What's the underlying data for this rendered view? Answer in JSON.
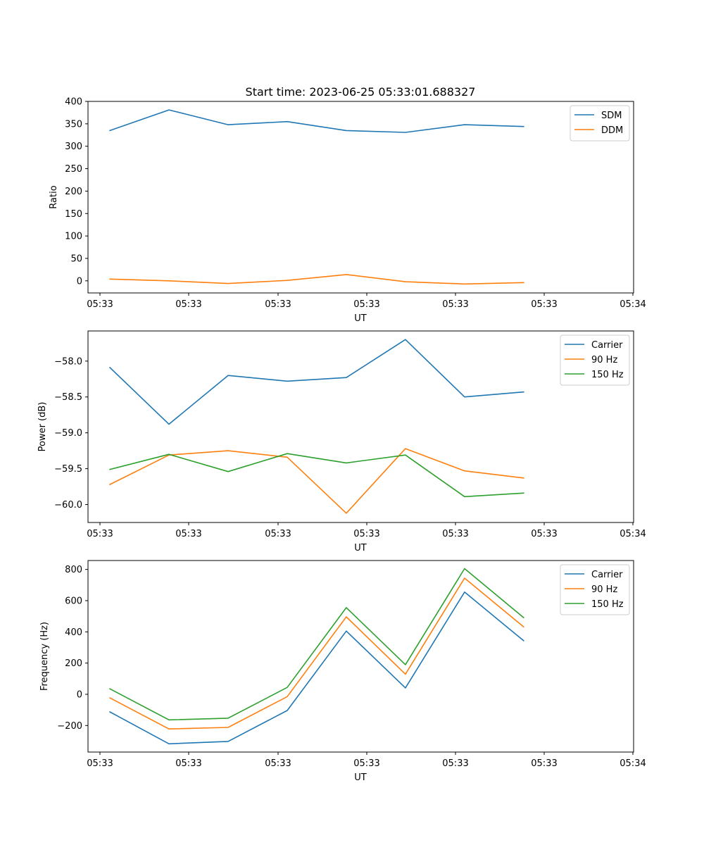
{
  "figure": {
    "title": "Start time: 2023-06-25 05:33:01.688327"
  },
  "chart_data": [
    {
      "type": "line",
      "title": "Start time: 2023-06-25 05:33:01.688327",
      "xlabel": "UT",
      "ylabel": "Ratio",
      "x_tick_labels": [
        "05:33",
        "05:33",
        "05:33",
        "05:33",
        "05:33",
        "05:33",
        "05:34"
      ],
      "y_ticks": [
        0,
        50,
        100,
        150,
        200,
        250,
        300,
        350,
        400
      ],
      "y_tick_labels": [
        "0",
        "50",
        "100",
        "150",
        "200",
        "250",
        "300",
        "350",
        "400"
      ],
      "ylim": [
        -27,
        400
      ],
      "xlim": [
        -0.37,
        8.86
      ],
      "x": [
        0,
        1,
        2,
        3,
        4,
        5,
        6,
        7
      ],
      "legend_position": "top-right",
      "series": [
        {
          "name": "SDM",
          "color": "#1f77b4",
          "values": [
            335,
            381,
            348,
            355,
            335,
            331,
            348,
            344
          ]
        },
        {
          "name": "DDM",
          "color": "#ff7f0e",
          "values": [
            4,
            0,
            -6,
            1,
            14,
            -2,
            -7,
            -4
          ]
        }
      ]
    },
    {
      "type": "line",
      "xlabel": "UT",
      "ylabel": "Power (dB)",
      "x_tick_labels": [
        "05:33",
        "05:33",
        "05:33",
        "05:33",
        "05:33",
        "05:33",
        "05:34"
      ],
      "y_ticks": [
        -60.0,
        -59.5,
        -59.0,
        -58.5,
        -58.0
      ],
      "y_tick_labels": [
        "−60.0",
        "−59.5",
        "−59.0",
        "−58.5",
        "−58.0"
      ],
      "ylim": [
        -60.25,
        -57.58
      ],
      "xlim": [
        -0.37,
        8.86
      ],
      "x": [
        0,
        1,
        2,
        3,
        4,
        5,
        6,
        7
      ],
      "legend_position": "top-right",
      "series": [
        {
          "name": "Carrier",
          "color": "#1f77b4",
          "values": [
            -58.09,
            -58.88,
            -58.2,
            -58.28,
            -58.23,
            -57.7,
            -58.5,
            -58.43
          ]
        },
        {
          "name": "90 Hz",
          "color": "#ff7f0e",
          "values": [
            -59.72,
            -59.31,
            -59.25,
            -59.34,
            -60.12,
            -59.22,
            -59.53,
            -59.63
          ]
        },
        {
          "name": "150 Hz",
          "color": "#2ca02c",
          "values": [
            -59.51,
            -59.3,
            -59.54,
            -59.29,
            -59.42,
            -59.31,
            -59.89,
            -59.84
          ]
        }
      ]
    },
    {
      "type": "line",
      "xlabel": "UT",
      "ylabel": "Frequency (Hz)",
      "x_tick_labels": [
        "05:33",
        "05:33",
        "05:33",
        "05:33",
        "05:33",
        "05:33",
        "05:34"
      ],
      "y_ticks": [
        -200,
        0,
        200,
        400,
        600,
        800
      ],
      "y_tick_labels": [
        "−200",
        "0",
        "200",
        "400",
        "600",
        "800"
      ],
      "ylim": [
        -370,
        857
      ],
      "xlim": [
        -0.37,
        8.86
      ],
      "x": [
        0,
        1,
        2,
        3,
        4,
        5,
        6,
        7
      ],
      "legend_position": "top-right",
      "series": [
        {
          "name": "Carrier",
          "color": "#1f77b4",
          "values": [
            -113,
            -317,
            -302,
            -104,
            405,
            41,
            655,
            343
          ]
        },
        {
          "name": "90 Hz",
          "color": "#ff7f0e",
          "values": [
            -23,
            -222,
            -212,
            -15,
            496,
            129,
            744,
            432
          ]
        },
        {
          "name": "150 Hz",
          "color": "#2ca02c",
          "values": [
            35,
            -164,
            -153,
            44,
            555,
            190,
            805,
            491
          ]
        }
      ]
    }
  ]
}
